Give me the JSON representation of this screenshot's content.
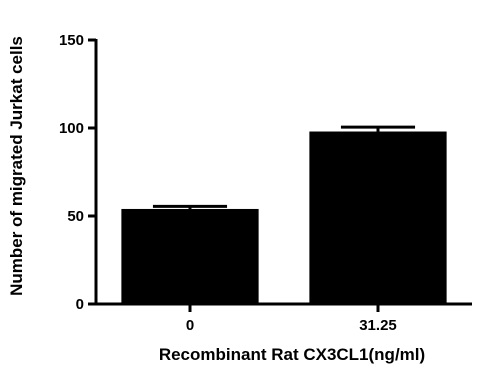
{
  "chart_data": {
    "type": "bar",
    "title": "",
    "xlabel": "Recombinant Rat CX3CL1(ng/ml)",
    "ylabel": "Number of migrated Jurkat cells",
    "ylim": [
      0,
      150
    ],
    "yticks": [
      0,
      50,
      100,
      150
    ],
    "categories": [
      "0",
      "31.25"
    ],
    "values": [
      54,
      98
    ],
    "errors": [
      1.5,
      2.5
    ],
    "grid": false,
    "legend": "none",
    "bar_color": "#000000"
  }
}
